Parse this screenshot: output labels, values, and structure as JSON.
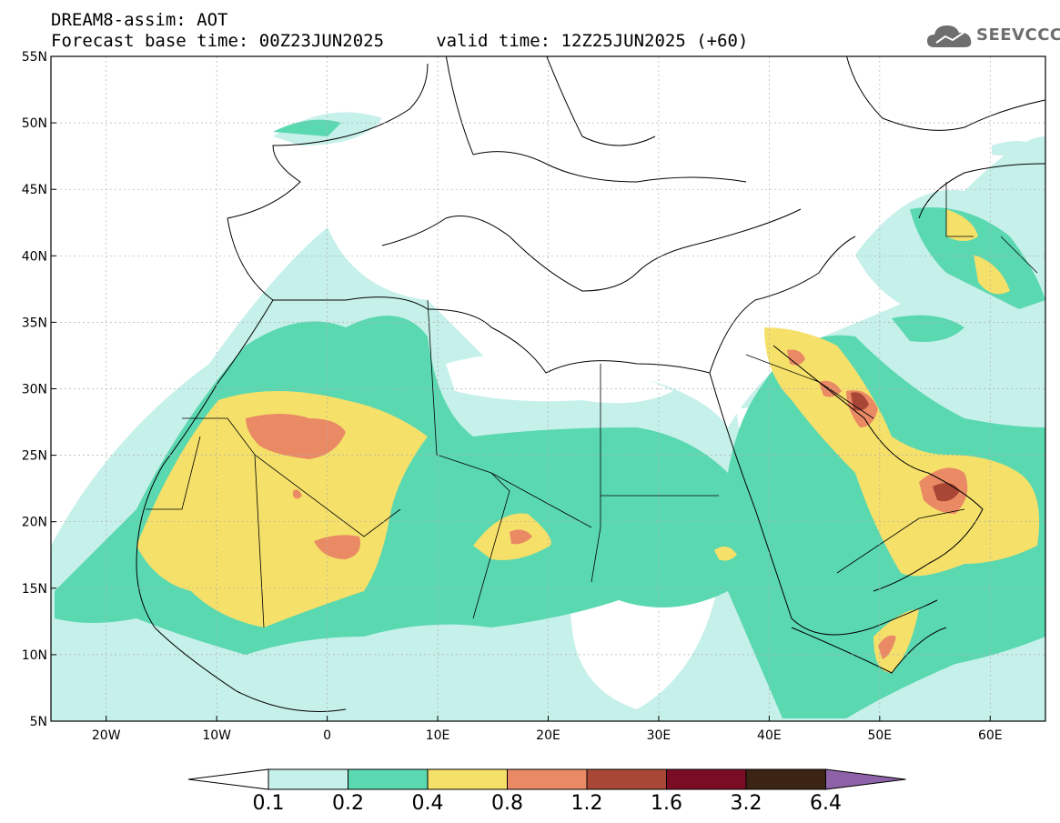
{
  "header": {
    "title_line1": "DREAM8-assim: AOT",
    "title_line2": "Forecast base time: 00Z23JUN2025     valid time: 12Z25JUN2025 (+60)",
    "logo_text": "SEEVCCC"
  },
  "map": {
    "lon_range": [
      -25,
      65
    ],
    "lat_range": [
      5,
      55
    ],
    "lat_ticks": [
      "55N",
      "50N",
      "45N",
      "40N",
      "35N",
      "30N",
      "25N",
      "20N",
      "15N",
      "10N",
      "5N"
    ],
    "lon_ticks": [
      "20W",
      "10W",
      "0",
      "10E",
      "20E",
      "30E",
      "40E",
      "50E",
      "60E"
    ],
    "background": "#ffffff"
  },
  "colorbar": {
    "labels": [
      "0.1",
      "0.2",
      "0.4",
      "0.8",
      "1.2",
      "1.6",
      "3.2",
      "6.4"
    ],
    "colors": [
      "#ffffff",
      "#c6f0ea",
      "#5ad8b0",
      "#f5e06a",
      "#e98a65",
      "#a94736",
      "#7a0c25",
      "#3b2414",
      "#8e62a8"
    ]
  }
}
